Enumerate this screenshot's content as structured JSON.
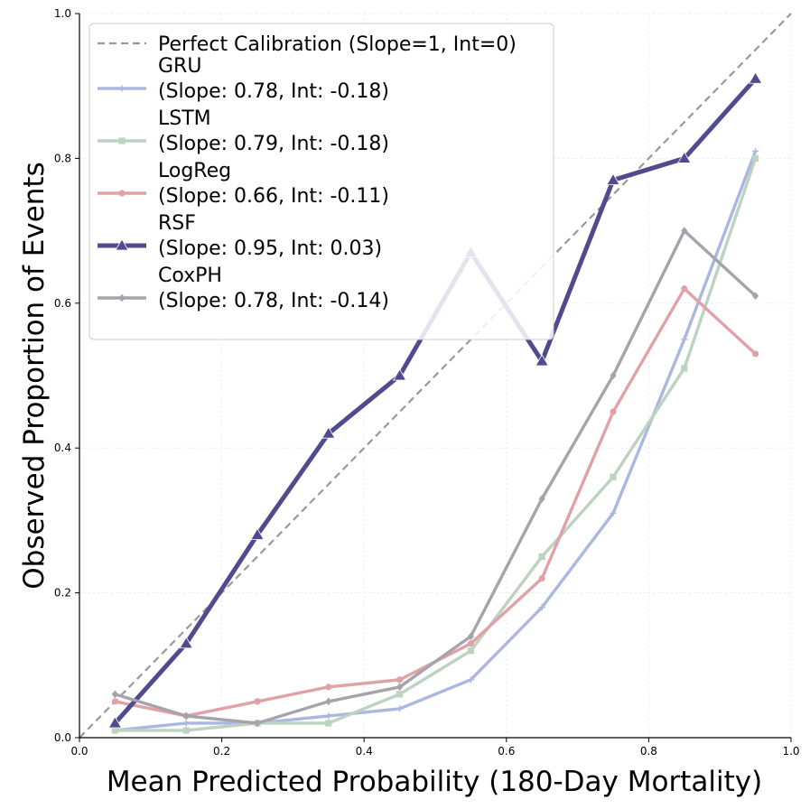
{
  "chart_data": {
    "type": "line",
    "title": "",
    "xlabel": "Mean Predicted Probability (180-Day Mortality)",
    "ylabel": "Observed Proportion of Events",
    "xlim": [
      0.0,
      1.0
    ],
    "ylim": [
      0.0,
      1.0
    ],
    "xticks": [
      "0.0",
      "0.2",
      "0.4",
      "0.6",
      "0.8",
      "1.0"
    ],
    "yticks": [
      "0.0",
      "0.2",
      "0.4",
      "0.6",
      "0.8",
      "1.0"
    ],
    "grid": true,
    "legend_position": "upper-left",
    "x": [
      0.05,
      0.15,
      0.25,
      0.35,
      0.45,
      0.55,
      0.65,
      0.75,
      0.85,
      0.95
    ],
    "reference": {
      "name": "Perfect Calibration (Slope=1, Int=0)",
      "x": [
        0,
        1
      ],
      "y": [
        0,
        1
      ],
      "color": "#999999"
    },
    "series": [
      {
        "name": "GRU",
        "stats": "(Slope: 0.78, Int: -0.18)",
        "values": [
          0.01,
          0.02,
          0.02,
          0.03,
          0.04,
          0.08,
          0.18,
          0.31,
          0.55,
          0.81
        ],
        "color": "#aab8e0",
        "marker": "plus"
      },
      {
        "name": "LSTM",
        "stats": "(Slope: 0.79, Int: -0.18)",
        "values": [
          0.01,
          0.01,
          0.02,
          0.02,
          0.06,
          0.12,
          0.25,
          0.36,
          0.51,
          0.8
        ],
        "color": "#bcd3c0",
        "marker": "square"
      },
      {
        "name": "LogReg",
        "stats": "(Slope: 0.66, Int: -0.11)",
        "values": [
          0.05,
          0.03,
          0.05,
          0.07,
          0.08,
          0.13,
          0.22,
          0.45,
          0.62,
          0.53
        ],
        "color": "#e0a2a6",
        "marker": "circle"
      },
      {
        "name": "RSF",
        "stats": "(Slope: 0.95, Int: 0.03)",
        "values": [
          0.02,
          0.13,
          0.28,
          0.42,
          0.5,
          0.67,
          0.52,
          0.77,
          0.8,
          0.91
        ],
        "color": "#504a8e",
        "marker": "triangle"
      },
      {
        "name": "CoxPH",
        "stats": "(Slope: 0.78, Int: -0.14)",
        "values": [
          0.06,
          0.03,
          0.02,
          0.05,
          0.07,
          0.14,
          0.33,
          0.5,
          0.7,
          0.61
        ],
        "color": "#a5a3ab",
        "marker": "diamond"
      }
    ]
  }
}
